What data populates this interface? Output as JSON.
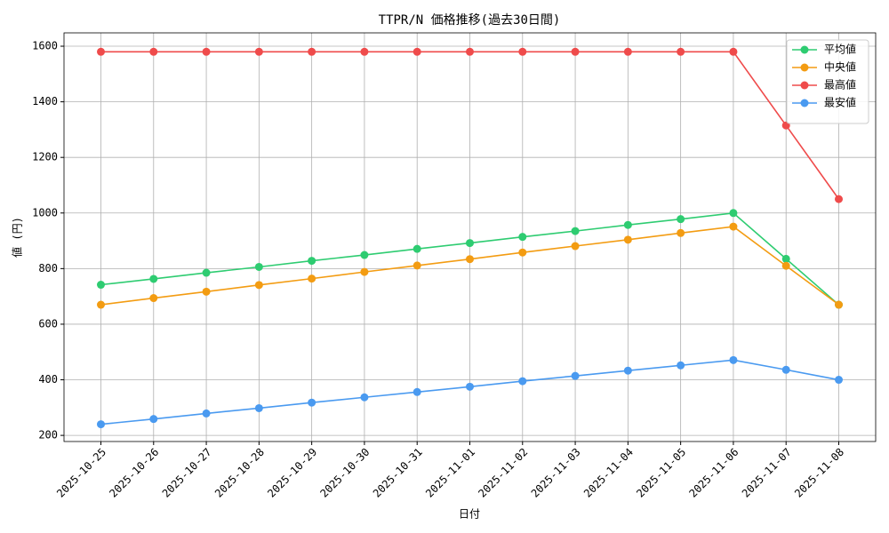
{
  "chart_data": {
    "type": "line",
    "title": "TTPR/N 価格推移(過去30日間)",
    "x_label": "日付",
    "y_label": "値 (円)",
    "categories": [
      "2025-10-25",
      "2025-10-26",
      "2025-10-27",
      "2025-10-28",
      "2025-10-29",
      "2025-10-30",
      "2025-10-31",
      "2025-11-01",
      "2025-11-02",
      "2025-11-03",
      "2025-11-04",
      "2025-11-05",
      "2025-11-06",
      "2025-11-07",
      "2025-11-08"
    ],
    "series": [
      {
        "name": "平均値",
        "color": "#2ecc71",
        "values": [
          742,
          763,
          785,
          806,
          828,
          849,
          871,
          892,
          914,
          935,
          957,
          978,
          1000,
          835,
          670
        ]
      },
      {
        "name": "中央値",
        "color": "#f39c12",
        "values": [
          670,
          694,
          717,
          741,
          764,
          788,
          811,
          834,
          858,
          881,
          904,
          928,
          951,
          810,
          670
        ]
      },
      {
        "name": "最高値",
        "color": "#ef4b4b",
        "values": [
          1580,
          1580,
          1580,
          1580,
          1580,
          1580,
          1580,
          1580,
          1580,
          1580,
          1580,
          1580,
          1580,
          1315,
          1050
        ]
      },
      {
        "name": "最安値",
        "color": "#4a9af0",
        "values": [
          240,
          259,
          279,
          298,
          318,
          337,
          356,
          375,
          395,
          414,
          433,
          452,
          471,
          436,
          400
        ]
      }
    ],
    "ylim": [
      178,
      1648
    ],
    "yticks": [
      200,
      400,
      600,
      800,
      1000,
      1200,
      1400,
      1600
    ],
    "grid": true,
    "legend": "upper right"
  }
}
